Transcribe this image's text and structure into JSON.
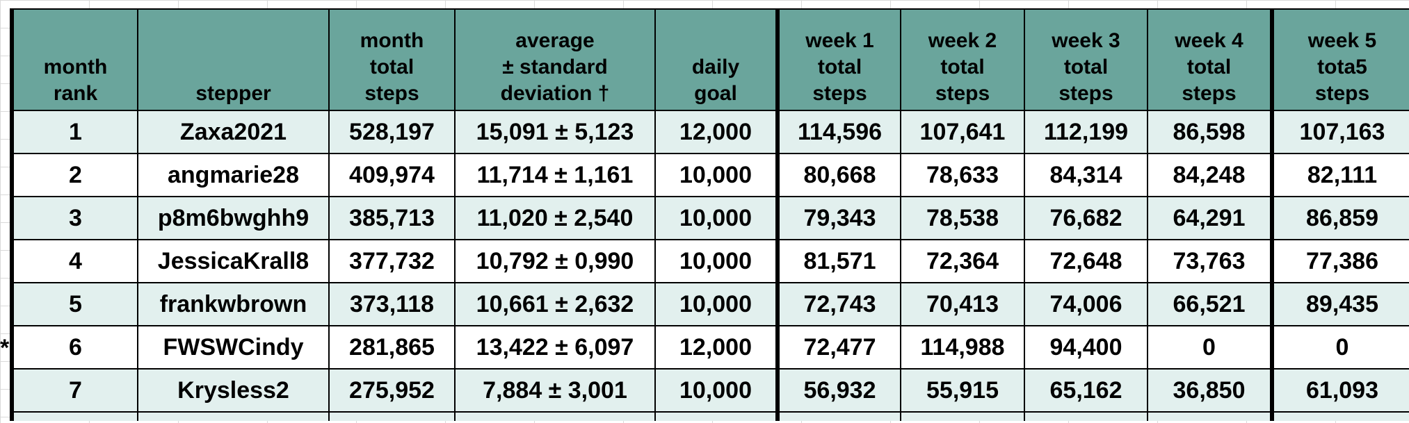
{
  "headers": [
    {
      "lines": [
        "month",
        "rank"
      ]
    },
    {
      "lines": [
        "stepper"
      ]
    },
    {
      "lines": [
        "month",
        "total",
        "steps"
      ]
    },
    {
      "lines": [
        "average",
        "± standard",
        "deviation †"
      ]
    },
    {
      "lines": [
        "daily",
        "goal"
      ]
    },
    {
      "lines": [
        "week 1",
        "total",
        "steps"
      ]
    },
    {
      "lines": [
        "week 2",
        "total",
        "steps"
      ]
    },
    {
      "lines": [
        "week 3",
        "total",
        "steps"
      ]
    },
    {
      "lines": [
        "week 4",
        "total",
        "steps"
      ]
    },
    {
      "lines": [
        "week 5",
        "tota5",
        "steps"
      ]
    }
  ],
  "rows": [
    [
      "1",
      "Zaxa2021",
      "528,197",
      "15,091 ± 5,123",
      "12,000",
      "114,596",
      "107,641",
      "112,199",
      "86,598",
      "107,163"
    ],
    [
      "2",
      "angmarie28",
      "409,974",
      "11,714 ± 1,161",
      "10,000",
      "80,668",
      "78,633",
      "84,314",
      "84,248",
      "82,111"
    ],
    [
      "3",
      "p8m6bwghh9",
      "385,713",
      "11,020 ± 2,540",
      "10,000",
      "79,343",
      "78,538",
      "76,682",
      "64,291",
      "86,859"
    ],
    [
      "4",
      "JessicaKrall8",
      "377,732",
      "10,792 ± 0,990",
      "10,000",
      "81,571",
      "72,364",
      "72,648",
      "73,763",
      "77,386"
    ],
    [
      "5",
      "frankwbrown",
      "373,118",
      "10,661 ± 2,632",
      "10,000",
      "72,743",
      "70,413",
      "74,006",
      "66,521",
      "89,435"
    ],
    [
      "6",
      "FWSWCindy",
      "281,865",
      "13,422 ± 6,097",
      "12,000",
      "72,477",
      "114,988",
      "94,400",
      "0",
      "0"
    ],
    [
      "7",
      "Krysless2",
      "275,952",
      "7,884 ± 3,001",
      "10,000",
      "56,932",
      "55,915",
      "65,162",
      "36,850",
      "61,093"
    ]
  ],
  "row_marker": "*",
  "colors": {
    "header_bg": "#6aa59c",
    "odd_row_bg": "#e2f0ee",
    "even_row_bg": "#ffffff",
    "border": "#000000"
  }
}
